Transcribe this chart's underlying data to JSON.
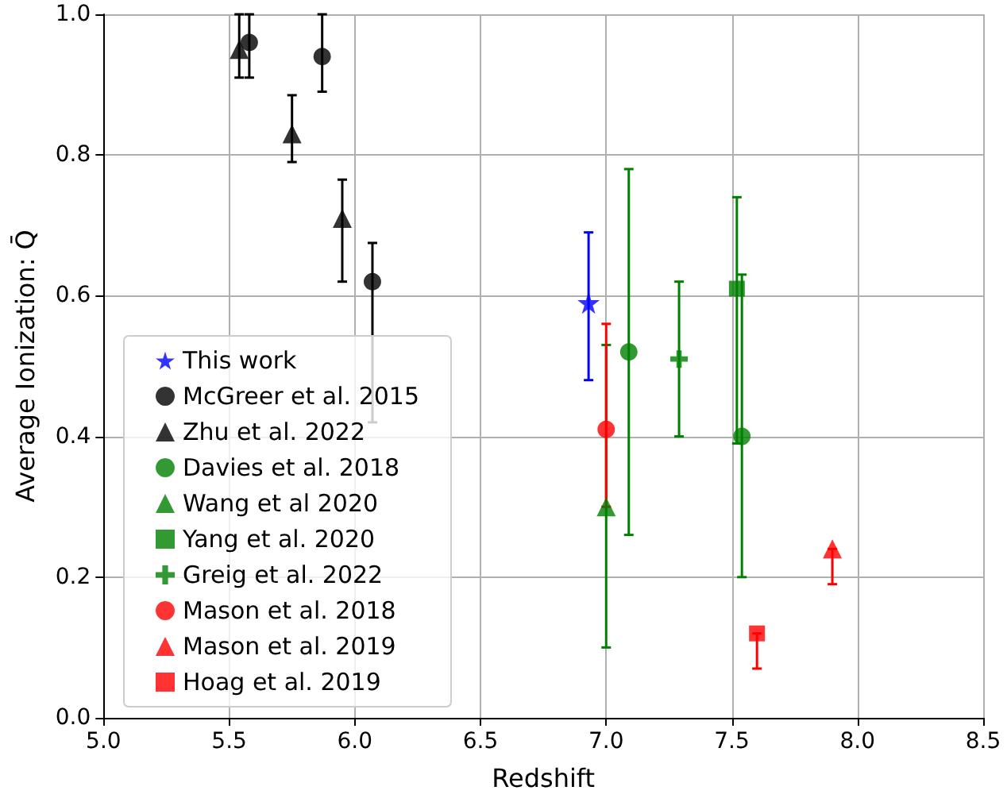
{
  "chart_data": {
    "type": "scatter",
    "xlabel": "Redshift",
    "ylabel": "Average Ionization: Q̄",
    "xlim": [
      5.0,
      8.5
    ],
    "ylim": [
      0.0,
      1.0
    ],
    "xticks": [
      {
        "value": 5.0,
        "label": "5.0"
      },
      {
        "value": 5.5,
        "label": "5.5"
      },
      {
        "value": 6.0,
        "label": "6.0"
      },
      {
        "value": 6.5,
        "label": "6.5"
      },
      {
        "value": 7.0,
        "label": "7.0"
      },
      {
        "value": 7.5,
        "label": "7.5"
      },
      {
        "value": 8.0,
        "label": "8.0"
      },
      {
        "value": 8.5,
        "label": "8.5"
      }
    ],
    "yticks": [
      {
        "value": 0,
        "label": "0.0"
      },
      {
        "value": 0.2,
        "label": "0.2"
      },
      {
        "value": 0.4,
        "label": "0.4"
      },
      {
        "value": 0.6,
        "label": "0.6"
      },
      {
        "value": 0.8,
        "label": "0.8"
      },
      {
        "value": 1.0,
        "label": "1.0"
      }
    ],
    "grid": true,
    "legend": "bottom left",
    "series": [
      {
        "name": "This work",
        "color": "#0000ff",
        "marker": "star",
        "x": [
          6.93
        ],
        "values": [
          0.59
        ],
        "errors": [
          [
            0.48,
            0.69
          ]
        ]
      },
      {
        "name": "McGreer et al. 2015",
        "color": "#000000",
        "marker": "circle",
        "x": [
          5.58,
          5.87,
          6.07
        ],
        "values": [
          0.96,
          0.94,
          0.62
        ],
        "errors": [
          [
            0.91,
            1.0
          ],
          [
            0.89,
            1.0
          ],
          [
            0.42,
            0.675
          ]
        ]
      },
      {
        "name": "Zhu et al. 2022",
        "color": "#000000",
        "marker": "triangle",
        "x": [
          5.54,
          5.75,
          5.95
        ],
        "values": [
          0.95,
          0.83,
          0.71
        ],
        "errors": [
          [
            0.91,
            1.0
          ],
          [
            0.79,
            0.885
          ],
          [
            0.62,
            0.765
          ]
        ]
      },
      {
        "name": "Davies et al. 2018",
        "color": "#008000",
        "marker": "circle",
        "x": [
          7.09,
          7.54
        ],
        "values": [
          0.52,
          0.4
        ],
        "errors": [
          [
            0.26,
            0.78
          ],
          [
            0.2,
            0.63
          ]
        ]
      },
      {
        "name": "Wang et al 2020",
        "color": "#008000",
        "marker": "triangle",
        "x": [
          7.0
        ],
        "values": [
          0.3
        ],
        "errors": [
          [
            0.1,
            0.53
          ]
        ]
      },
      {
        "name": "Yang et al. 2020",
        "color": "#008000",
        "marker": "square",
        "x": [
          7.52
        ],
        "values": [
          0.61
        ],
        "errors": [
          [
            0.39,
            0.74
          ]
        ]
      },
      {
        "name": "Greig et al. 2022",
        "color": "#008000",
        "marker": "cross",
        "x": [
          7.29
        ],
        "values": [
          0.51
        ],
        "errors": [
          [
            0.4,
            0.62
          ]
        ]
      },
      {
        "name": "Mason et al. 2018",
        "color": "#ff0000",
        "marker": "circle",
        "x": [
          7.0
        ],
        "values": [
          0.41
        ],
        "errors": [
          [
            0.3,
            0.56
          ]
        ]
      },
      {
        "name": "Mason et al. 2019",
        "color": "#ff0000",
        "marker": "triangle",
        "x": [
          7.9
        ],
        "values": [
          0.24
        ],
        "errors": [
          [
            0.19,
            0.24
          ]
        ]
      },
      {
        "name": "Hoag et al. 2019",
        "color": "#ff0000",
        "marker": "square",
        "x": [
          7.6
        ],
        "values": [
          0.12
        ],
        "errors": [
          [
            0.07,
            0.12
          ]
        ]
      }
    ]
  }
}
